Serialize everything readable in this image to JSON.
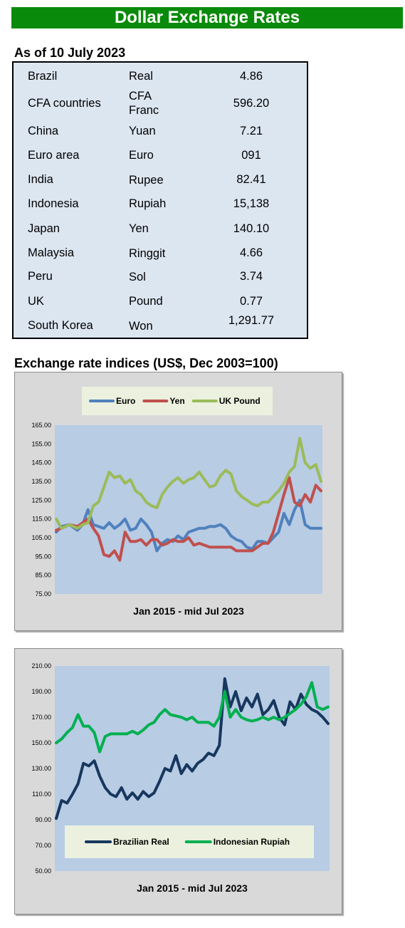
{
  "banner": {
    "title": "Dollar Exchange Rates"
  },
  "rates": {
    "as_of": "As of 10 July 2023",
    "rows": [
      {
        "country": "Brazil",
        "currency": "Real",
        "value": "4.86"
      },
      {
        "country": "CFA countries",
        "currency": "CFA Franc",
        "value": "596.20"
      },
      {
        "country": "China",
        "currency": "Yuan",
        "value": "7.21"
      },
      {
        "country": "Euro area",
        "currency": "Euro",
        "value": "091"
      },
      {
        "country": "India",
        "currency": "Rupee",
        "value": "82.41"
      },
      {
        "country": "Indonesia",
        "currency": "Rupiah",
        "value": "15,138"
      },
      {
        "country": "Japan",
        "currency": "Yen",
        "value": "140.10"
      },
      {
        "country": "Malaysia",
        "currency": "Ringgit",
        "value": "4.66"
      },
      {
        "country": "Peru",
        "currency": "Sol",
        "value": "3.74"
      },
      {
        "country": "UK",
        "currency": "Pound",
        "value": "0.77"
      },
      {
        "country": "South Korea",
        "currency": "Won",
        "value": "1,291.77"
      }
    ]
  },
  "indices": {
    "heading": "Exchange rate indices (US$, Dec 2003=100)"
  },
  "chart_data": [
    {
      "type": "line",
      "xlabel": "Jan 2015 - mid Jul 2023",
      "ylim": [
        75,
        165
      ],
      "yticks": [
        "165.00",
        "155.00",
        "145.00",
        "135.00",
        "125.00",
        "115.00",
        "105.00",
        "95.00",
        "85.00",
        "75.00"
      ],
      "grid": false,
      "legend": "top",
      "series": [
        {
          "name": "Euro",
          "color": "#4f81bd",
          "x": [
            0,
            0.02,
            0.05,
            0.08,
            0.1,
            0.12,
            0.14,
            0.16,
            0.18,
            0.2,
            0.22,
            0.24,
            0.26,
            0.28,
            0.3,
            0.32,
            0.34,
            0.36,
            0.38,
            0.4,
            0.42,
            0.44,
            0.46,
            0.48,
            0.5,
            0.52,
            0.54,
            0.56,
            0.58,
            0.6,
            0.62,
            0.64,
            0.66,
            0.68,
            0.7,
            0.72,
            0.74,
            0.76,
            0.78,
            0.8,
            0.82,
            0.84,
            0.86,
            0.88,
            0.9,
            0.92,
            0.94,
            0.96,
            1.0
          ],
          "values": [
            108,
            111,
            112,
            109,
            112,
            120,
            112,
            111,
            110,
            113,
            110,
            112,
            115,
            109,
            110,
            115,
            112,
            108,
            98,
            102,
            104,
            103,
            106,
            104,
            108,
            109,
            110,
            110,
            111,
            111,
            112,
            110,
            106,
            104,
            103,
            100,
            99,
            103,
            103,
            102,
            105,
            108,
            118,
            112,
            120,
            125,
            112,
            110,
            110
          ]
        },
        {
          "name": "Yen",
          "color": "#c0504d",
          "x": [
            0,
            0.02,
            0.05,
            0.08,
            0.1,
            0.12,
            0.14,
            0.16,
            0.18,
            0.2,
            0.22,
            0.24,
            0.26,
            0.28,
            0.3,
            0.32,
            0.34,
            0.36,
            0.38,
            0.4,
            0.42,
            0.44,
            0.46,
            0.48,
            0.5,
            0.52,
            0.54,
            0.56,
            0.58,
            0.6,
            0.62,
            0.64,
            0.66,
            0.68,
            0.7,
            0.72,
            0.74,
            0.76,
            0.78,
            0.8,
            0.82,
            0.84,
            0.86,
            0.88,
            0.9,
            0.92,
            0.94,
            0.96,
            0.98,
            1.0
          ],
          "values": [
            109,
            110,
            112,
            111,
            113,
            115,
            110,
            106,
            96,
            95,
            98,
            93,
            108,
            103,
            103,
            104,
            101,
            104,
            104,
            101,
            102,
            104,
            103,
            103,
            105,
            101,
            102,
            101,
            100,
            100,
            100,
            100,
            100,
            98,
            98,
            98,
            98,
            100,
            102,
            102,
            108,
            118,
            128,
            137,
            124,
            122,
            128,
            124,
            133,
            130
          ]
        },
        {
          "name": "UK Pound",
          "color": "#9bbb59",
          "x": [
            0,
            0.02,
            0.05,
            0.08,
            0.1,
            0.12,
            0.14,
            0.16,
            0.18,
            0.2,
            0.22,
            0.24,
            0.26,
            0.28,
            0.3,
            0.32,
            0.34,
            0.36,
            0.38,
            0.4,
            0.42,
            0.44,
            0.46,
            0.48,
            0.5,
            0.52,
            0.54,
            0.56,
            0.58,
            0.6,
            0.62,
            0.64,
            0.66,
            0.68,
            0.7,
            0.72,
            0.74,
            0.76,
            0.78,
            0.8,
            0.82,
            0.84,
            0.86,
            0.88,
            0.9,
            0.92,
            0.94,
            0.96,
            0.98,
            1.0
          ],
          "values": [
            115,
            110,
            112,
            110,
            112,
            113,
            122,
            124,
            132,
            140,
            137,
            138,
            134,
            136,
            130,
            128,
            124,
            122,
            121,
            128,
            132,
            135,
            137,
            134,
            136,
            137,
            140,
            136,
            132,
            133,
            138,
            141,
            139,
            130,
            127,
            125,
            123,
            122,
            124,
            124,
            127,
            130,
            134,
            140,
            143,
            158,
            145,
            142,
            144,
            135
          ]
        }
      ]
    },
    {
      "type": "line",
      "xlabel": "Jan 2015 - mid Jul 2023",
      "ylim": [
        50,
        210
      ],
      "yticks": [
        "210.00",
        "190.00",
        "170.00",
        "150.00",
        "130.00",
        "110.00",
        "90.00",
        "70.00",
        "50.00"
      ],
      "grid": false,
      "legend": "bottom",
      "series": [
        {
          "name": "Brazilian Real",
          "color": "#17375e",
          "x": [
            0,
            0.02,
            0.04,
            0.06,
            0.08,
            0.1,
            0.12,
            0.14,
            0.16,
            0.18,
            0.2,
            0.22,
            0.24,
            0.26,
            0.28,
            0.3,
            0.32,
            0.34,
            0.36,
            0.38,
            0.4,
            0.42,
            0.44,
            0.46,
            0.48,
            0.5,
            0.52,
            0.54,
            0.56,
            0.58,
            0.6,
            0.62,
            0.64,
            0.66,
            0.68,
            0.7,
            0.72,
            0.74,
            0.76,
            0.78,
            0.8,
            0.82,
            0.84,
            0.86,
            0.88,
            0.9,
            0.92,
            0.94,
            0.96,
            0.98,
            1.0
          ],
          "values": [
            91,
            105,
            103,
            110,
            118,
            134,
            132,
            136,
            124,
            115,
            110,
            108,
            115,
            106,
            111,
            106,
            112,
            108,
            111,
            120,
            130,
            128,
            140,
            126,
            133,
            128,
            134,
            137,
            142,
            140,
            148,
            200,
            178,
            190,
            175,
            185,
            178,
            188,
            172,
            176,
            183,
            170,
            164,
            182,
            176,
            188,
            180,
            176,
            174,
            170,
            165
          ]
        },
        {
          "name": "Indonesian Rupiah",
          "color": "#00b050",
          "x": [
            0,
            0.02,
            0.04,
            0.06,
            0.08,
            0.1,
            0.12,
            0.14,
            0.16,
            0.18,
            0.2,
            0.22,
            0.24,
            0.26,
            0.28,
            0.3,
            0.32,
            0.34,
            0.36,
            0.38,
            0.4,
            0.42,
            0.44,
            0.46,
            0.48,
            0.5,
            0.52,
            0.54,
            0.56,
            0.58,
            0.6,
            0.62,
            0.64,
            0.66,
            0.68,
            0.7,
            0.72,
            0.74,
            0.76,
            0.78,
            0.8,
            0.82,
            0.84,
            0.86,
            0.88,
            0.9,
            0.92,
            0.94,
            0.96,
            0.98,
            1.0
          ],
          "values": [
            150,
            153,
            158,
            162,
            172,
            163,
            163,
            158,
            143,
            155,
            157,
            157,
            157,
            157,
            159,
            157,
            160,
            164,
            166,
            172,
            176,
            172,
            171,
            170,
            168,
            170,
            166,
            166,
            166,
            163,
            170,
            190,
            170,
            176,
            170,
            168,
            167,
            168,
            170,
            168,
            170,
            168,
            170,
            173,
            176,
            180,
            186,
            197,
            178,
            176,
            178
          ]
        }
      ]
    }
  ]
}
